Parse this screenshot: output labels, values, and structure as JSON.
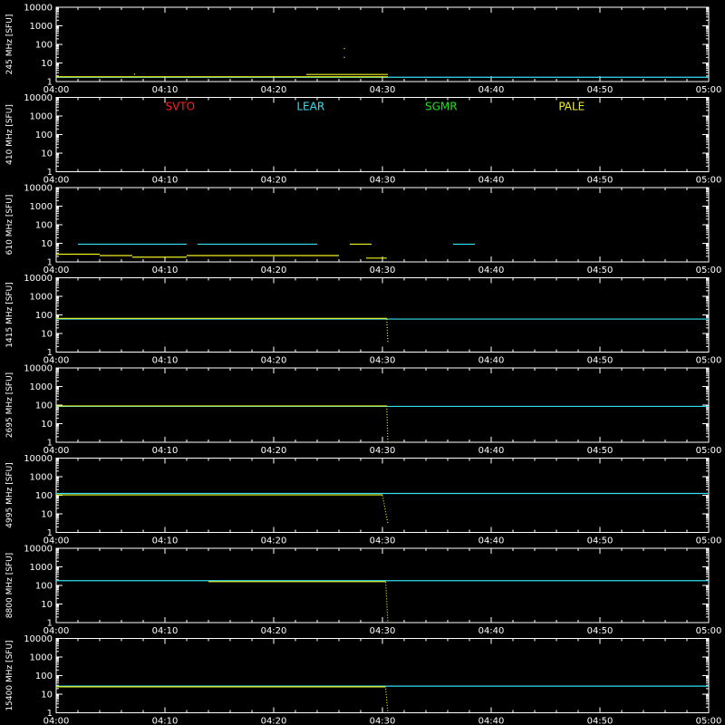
{
  "colors": {
    "background": "#000000",
    "axis": "#ffffff",
    "SVTO": "#ff2020",
    "LEAR": "#33e0f0",
    "SGMR": "#20e020",
    "PALE": "#f0f020"
  },
  "legend": {
    "placement": "top of second panel",
    "entries": [
      {
        "name": "SVTO",
        "color_key": "SVTO"
      },
      {
        "name": "LEAR",
        "color_key": "LEAR"
      },
      {
        "name": "SGMR",
        "color_key": "SGMR"
      },
      {
        "name": "PALE",
        "color_key": "PALE"
      }
    ]
  },
  "chart_data": {
    "type": "line",
    "x_range": [
      "04:00",
      "05:00"
    ],
    "x_tick_labels": [
      "04:00",
      "04:10",
      "04:20",
      "04:30",
      "04:40",
      "04:50",
      "05:00"
    ],
    "y_scale": "log",
    "y_range": [
      1,
      10000
    ],
    "y_tick_labels": [
      "1",
      "10",
      "100",
      "1000",
      "10000"
    ],
    "grid": false,
    "panels": [
      {
        "ylabel": "245 MHz [SFU]",
        "series": [
          {
            "name": "LEAR",
            "segments": [
              {
                "x": [
                  0.0,
                  60.0
                ],
                "y": [
                  1.7,
                  1.7
                ]
              }
            ]
          },
          {
            "name": "PALE",
            "segments": [
              {
                "x": [
                  0.0,
                  30.5
                ],
                "y": [
                  1.8,
                  1.8
                ]
              },
              {
                "x": [
                  23.0,
                  30.5
                ],
                "y": [
                  2.4,
                  2.4
                ]
              }
            ],
            "points": [
              {
                "x": 26.5,
                "y": 60
              },
              {
                "x": 26.5,
                "y": 20
              },
              {
                "x": 7.2,
                "y": 2.5
              }
            ]
          }
        ]
      },
      {
        "ylabel": "410 MHz [SFU]",
        "series": []
      },
      {
        "ylabel": "610 MHz [SFU]",
        "series": [
          {
            "name": "LEAR",
            "segments": [
              {
                "x": [
                  2.0,
                  12.0
                ],
                "y": [
                  9,
                  9
                ]
              },
              {
                "x": [
                  13.0,
                  24.0
                ],
                "y": [
                  9,
                  9
                ]
              },
              {
                "x": [
                  36.5,
                  38.5
                ],
                "y": [
                  9,
                  9
                ]
              }
            ]
          },
          {
            "name": "PALE",
            "segments": [
              {
                "x": [
                  0.0,
                  4.0
                ],
                "y": [
                  2.6,
                  2.6
                ]
              },
              {
                "x": [
                  4.0,
                  7.0
                ],
                "y": [
                  2.2,
                  2.2
                ]
              },
              {
                "x": [
                  7.0,
                  12.0
                ],
                "y": [
                  1.8,
                  1.8
                ]
              },
              {
                "x": [
                  12.0,
                  26.0
                ],
                "y": [
                  2.2,
                  2.2
                ]
              },
              {
                "x": [
                  27.0,
                  29.0
                ],
                "y": [
                  9,
                  9
                ]
              },
              {
                "x": [
                  28.5,
                  30.4
                ],
                "y": [
                  1.6,
                  1.6
                ]
              }
            ]
          }
        ]
      },
      {
        "ylabel": "1415 MHz [SFU]",
        "series": [
          {
            "name": "LEAR",
            "segments": [
              {
                "x": [
                  0.0,
                  60.0
                ],
                "y": [
                  60,
                  60
                ]
              }
            ]
          },
          {
            "name": "PALE",
            "segments": [
              {
                "x": [
                  0.0,
                  30.4
                ],
                "y": [
                  65,
                  65
                ]
              },
              {
                "x": [
                  30.4,
                  30.5
                ],
                "y": [
                  60,
                  3
                ]
              }
            ]
          }
        ]
      },
      {
        "ylabel": "2695 MHz [SFU]",
        "series": [
          {
            "name": "LEAR",
            "segments": [
              {
                "x": [
                  0.0,
                  60.0
                ],
                "y": [
                  85,
                  85
                ]
              }
            ]
          },
          {
            "name": "PALE",
            "segments": [
              {
                "x": [
                  0.0,
                  30.4
                ],
                "y": [
                  90,
                  90
                ]
              },
              {
                "x": [
                  30.4,
                  30.5
                ],
                "y": [
                  90,
                  1
                ]
              }
            ]
          }
        ]
      },
      {
        "ylabel": "4995 MHz [SFU]",
        "series": [
          {
            "name": "LEAR",
            "segments": [
              {
                "x": [
                  0.0,
                  60.0
                ],
                "y": [
                  125,
                  125
                ]
              }
            ]
          },
          {
            "name": "PALE",
            "segments": [
              {
                "x": [
                  0.0,
                  30.0
                ],
                "y": [
                  105,
                  105
                ]
              },
              {
                "x": [
                  30.0,
                  30.5
                ],
                "y": [
                  100,
                  3
                ]
              }
            ]
          }
        ]
      },
      {
        "ylabel": "8800 MHz [SFU]",
        "series": [
          {
            "name": "LEAR",
            "segments": [
              {
                "x": [
                  0.0,
                  60.0
                ],
                "y": [
                  180,
                  180
                ]
              }
            ]
          },
          {
            "name": "PALE",
            "segments": [
              {
                "x": [
                  14.0,
                  30.3
                ],
                "y": [
                  160,
                  160
                ]
              },
              {
                "x": [
                  30.3,
                  30.5
                ],
                "y": [
                  150,
                  1
                ]
              }
            ]
          }
        ]
      },
      {
        "ylabel": "15400 MHz [SFU]",
        "series": [
          {
            "name": "LEAR",
            "segments": [
              {
                "x": [
                  0.0,
                  60.0
                ],
                "y": [
                  27,
                  27
                ]
              }
            ]
          },
          {
            "name": "PALE",
            "segments": [
              {
                "x": [
                  0.0,
                  30.3
                ],
                "y": [
                  25,
                  25
                ]
              },
              {
                "x": [
                  30.3,
                  30.5
                ],
                "y": [
                  20,
                  1
                ]
              }
            ]
          }
        ]
      }
    ]
  }
}
